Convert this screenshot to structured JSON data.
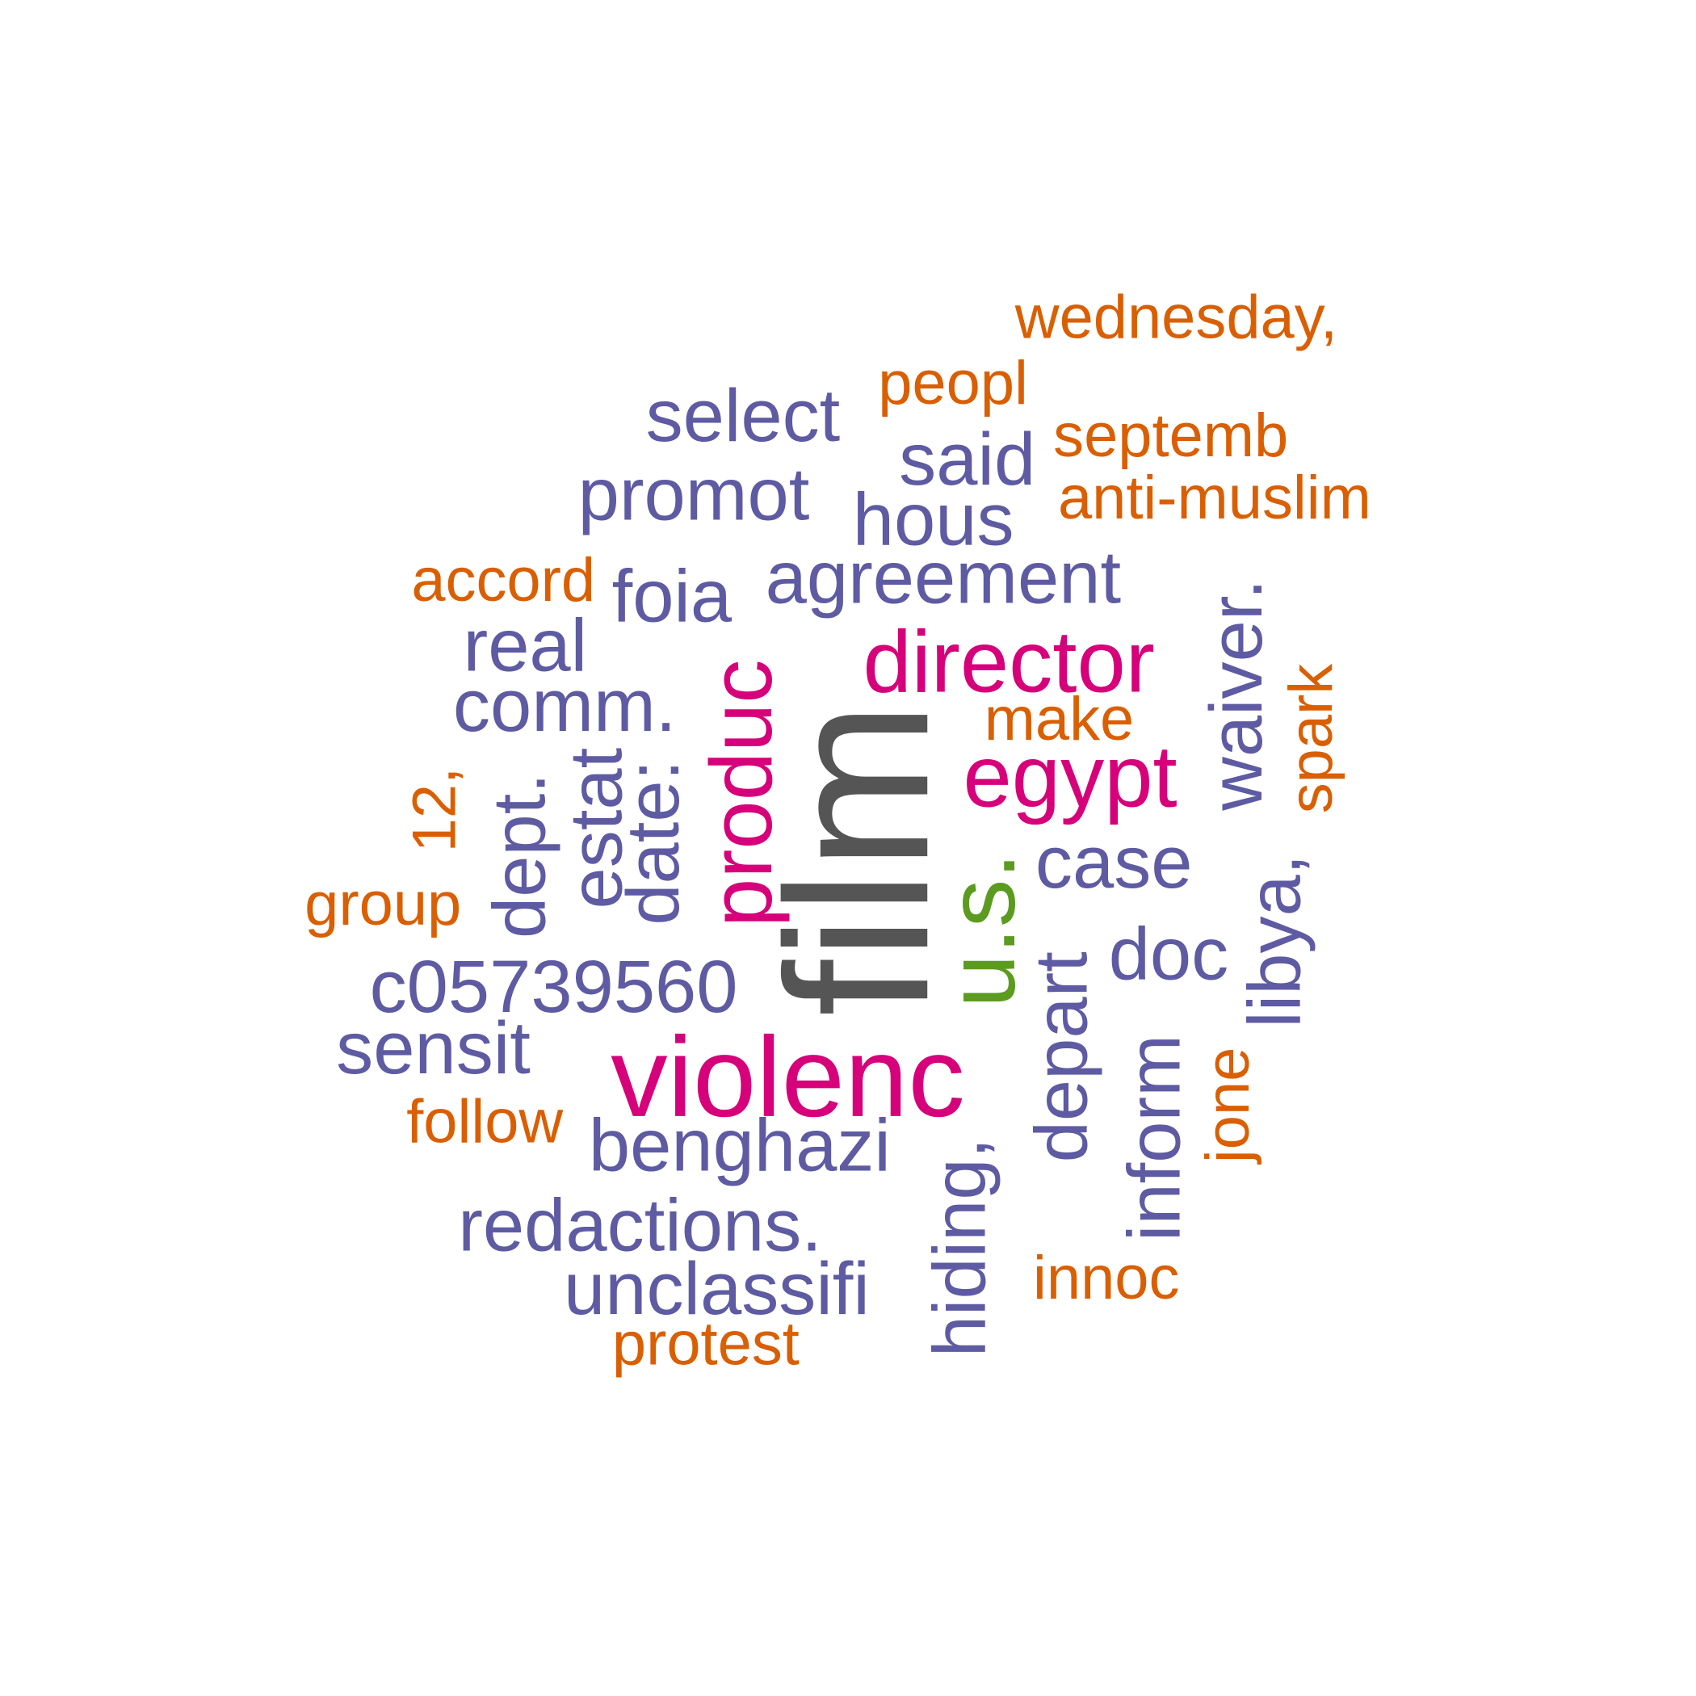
{
  "palette": {
    "orange": "#d95f02",
    "purple": "#5e5ba3",
    "magenta": "#d6007a",
    "green": "#5b9b1f",
    "gray": "#555555"
  },
  "words": [
    {
      "id": "film",
      "text": "film",
      "color": "#555555"
    },
    {
      "id": "violenc",
      "text": "violenc",
      "color": "#d6007a"
    },
    {
      "id": "u-s",
      "text": "u.s.",
      "color": "#5b9b1f"
    },
    {
      "id": "director",
      "text": "director",
      "color": "#d6007a"
    },
    {
      "id": "egypt",
      "text": "egypt",
      "color": "#d6007a"
    },
    {
      "id": "produc",
      "text": "produc",
      "color": "#d6007a"
    },
    {
      "id": "wednesday",
      "text": "wednesday,",
      "color": "#d95f02"
    },
    {
      "id": "peopl",
      "text": "peopl",
      "color": "#d95f02"
    },
    {
      "id": "septemb",
      "text": "septemb",
      "color": "#d95f02"
    },
    {
      "id": "anti-muslim",
      "text": "anti-muslim",
      "color": "#d95f02"
    },
    {
      "id": "accord",
      "text": "accord",
      "color": "#d95f02"
    },
    {
      "id": "make",
      "text": "make",
      "color": "#d95f02"
    },
    {
      "id": "spark",
      "text": "spark",
      "color": "#d95f02"
    },
    {
      "id": "12",
      "text": "12,",
      "color": "#d95f02"
    },
    {
      "id": "group",
      "text": "group",
      "color": "#d95f02"
    },
    {
      "id": "follow",
      "text": "follow",
      "color": "#d95f02"
    },
    {
      "id": "jone",
      "text": "jone",
      "color": "#d95f02"
    },
    {
      "id": "innoc",
      "text": "innoc",
      "color": "#d95f02"
    },
    {
      "id": "protest",
      "text": "protest",
      "color": "#d95f02"
    },
    {
      "id": "select",
      "text": "select",
      "color": "#5e5ba3"
    },
    {
      "id": "said",
      "text": "said",
      "color": "#5e5ba3"
    },
    {
      "id": "promot",
      "text": "promot",
      "color": "#5e5ba3"
    },
    {
      "id": "hous",
      "text": "hous",
      "color": "#5e5ba3"
    },
    {
      "id": "foia",
      "text": "foia",
      "color": "#5e5ba3"
    },
    {
      "id": "agreement",
      "text": "agreement",
      "color": "#5e5ba3"
    },
    {
      "id": "real",
      "text": "real",
      "color": "#5e5ba3"
    },
    {
      "id": "comm",
      "text": "comm.",
      "color": "#5e5ba3"
    },
    {
      "id": "waiver",
      "text": "waiver.",
      "color": "#5e5ba3"
    },
    {
      "id": "estat",
      "text": "estat",
      "color": "#5e5ba3"
    },
    {
      "id": "date",
      "text": "date:",
      "color": "#5e5ba3"
    },
    {
      "id": "dept",
      "text": "dept.",
      "color": "#5e5ba3"
    },
    {
      "id": "case",
      "text": "case",
      "color": "#5e5ba3"
    },
    {
      "id": "libya",
      "text": "libya,",
      "color": "#5e5ba3"
    },
    {
      "id": "doc",
      "text": "doc",
      "color": "#5e5ba3"
    },
    {
      "id": "c05739560",
      "text": "c05739560",
      "color": "#5e5ba3"
    },
    {
      "id": "sensit",
      "text": "sensit",
      "color": "#5e5ba3"
    },
    {
      "id": "depart",
      "text": "depart",
      "color": "#5e5ba3"
    },
    {
      "id": "inform",
      "text": "inform",
      "color": "#5e5ba3"
    },
    {
      "id": "benghazi",
      "text": "benghazi",
      "color": "#5e5ba3"
    },
    {
      "id": "hiding",
      "text": "hiding,",
      "color": "#5e5ba3"
    },
    {
      "id": "redactions",
      "text": "redactions.",
      "color": "#5e5ba3"
    },
    {
      "id": "unclassifi",
      "text": "unclassifi",
      "color": "#5e5ba3"
    }
  ]
}
